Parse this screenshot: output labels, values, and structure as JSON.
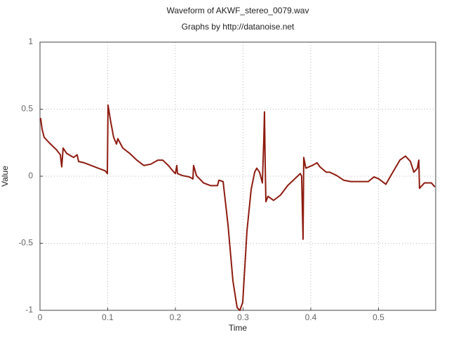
{
  "chart_data": {
    "type": "line",
    "title": "Waveform of AKWF_stereo_0079.wav",
    "subtitle": "Graphs by http://datanoise.net",
    "x_label": "Time",
    "y_label": "Value",
    "color": "#8e1b10",
    "x": [
      0,
      0.001,
      0.0031,
      0.0062,
      0.0135,
      0.0238,
      0.0301,
      0.0321,
      0.0342,
      0.0394,
      0.0497,
      0.0549,
      0.057,
      0.0653,
      0.0756,
      0.086,
      0.0964,
      0.0995,
      0.1005,
      0.1047,
      0.1088,
      0.113,
      0.115,
      0.1223,
      0.1326,
      0.143,
      0.1534,
      0.1637,
      0.1741,
      0.1813,
      0.1896,
      0.1979,
      0.2,
      0.2021,
      0.2031,
      0.2104,
      0.2207,
      0.2259,
      0.2269,
      0.2311,
      0.2415,
      0.2518,
      0.2622,
      0.2642,
      0.2705,
      0.2777,
      0.285,
      0.2912,
      0.2953,
      0.2995,
      0.3057,
      0.3119,
      0.3171,
      0.3202,
      0.3244,
      0.3285,
      0.3306,
      0.3316,
      0.3326,
      0.3337,
      0.3368,
      0.3451,
      0.3554,
      0.3658,
      0.3762,
      0.3845,
      0.3865,
      0.3886,
      0.3896,
      0.3927,
      0.4021,
      0.4093,
      0.4135,
      0.4228,
      0.428,
      0.4383,
      0.4487,
      0.4591,
      0.4746,
      0.485,
      0.4933,
      0.5005,
      0.5109,
      0.5212,
      0.5316,
      0.5399,
      0.5472,
      0.5523,
      0.5575,
      0.5596,
      0.5606,
      0.5679,
      0.5782,
      0.5834
    ],
    "values": [
      0.42,
      0.43,
      0.35,
      0.29,
      0.25,
      0.2,
      0.16,
      0.07,
      0.21,
      0.17,
      0.14,
      0.16,
      0.11,
      0.1,
      0.08,
      0.06,
      0.04,
      0.02,
      0.53,
      0.4,
      0.29,
      0.24,
      0.28,
      0.21,
      0.17,
      0.12,
      0.08,
      0.09,
      0.12,
      0.12,
      0.08,
      0.03,
      0.02,
      0.08,
      0.02,
      0.005,
      -0.005,
      -0.02,
      0.08,
      0.005,
      -0.05,
      -0.07,
      -0.07,
      -0.03,
      -0.04,
      -0.36,
      -0.78,
      -0.98,
      -1.0,
      -0.94,
      -0.41,
      -0.1,
      0.03,
      0.06,
      0.03,
      -0.05,
      0.27,
      0.48,
      0.11,
      -0.19,
      -0.15,
      -0.18,
      -0.14,
      -0.07,
      -0.02,
      0.02,
      0.0,
      -0.47,
      0.14,
      0.06,
      0.08,
      0.1,
      0.07,
      0.03,
      0.03,
      0.005,
      -0.03,
      -0.04,
      -0.04,
      -0.04,
      -0.005,
      -0.02,
      -0.06,
      0.03,
      0.12,
      0.15,
      0.11,
      0.03,
      0.06,
      0.12,
      -0.09,
      -0.05,
      -0.05,
      -0.08
    ],
    "xlim": [
      0,
      0.5845
    ],
    "xticks": [
      0,
      0.1,
      0.2,
      0.3,
      0.4,
      0.5
    ],
    "ylim": [
      -1,
      1
    ],
    "yticks": [
      -1,
      -0.5,
      0,
      0.5,
      1
    ],
    "grid": true
  }
}
